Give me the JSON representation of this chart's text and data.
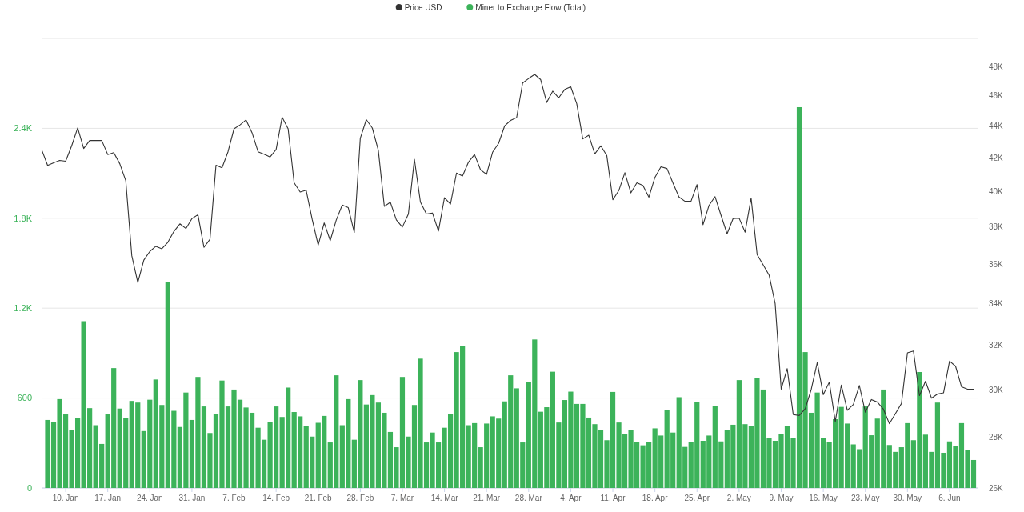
{
  "chart_data": {
    "type": "bar",
    "x": [
      "--01-06",
      "--01-07",
      "--01-08",
      "--01-09",
      "--01-10",
      "--01-11",
      "--01-12",
      "--01-13",
      "--01-14",
      "--01-15",
      "--01-16",
      "--01-17",
      "--01-18",
      "--01-19",
      "--01-20",
      "--01-21",
      "--01-22",
      "--01-23",
      "--01-24",
      "--01-25",
      "--01-26",
      "--01-27",
      "--01-28",
      "--01-29",
      "--01-30",
      "--01-31",
      "--02-01",
      "--02-02",
      "--02-03",
      "--02-04",
      "--02-05",
      "--02-06",
      "--02-07",
      "--02-08",
      "--02-09",
      "--02-10",
      "--02-11",
      "--02-12",
      "--02-13",
      "--02-14",
      "--02-15",
      "--02-16",
      "--02-17",
      "--02-18",
      "--02-19",
      "--02-20",
      "--02-21",
      "--02-22",
      "--02-23",
      "--02-24",
      "--02-25",
      "--02-26",
      "--02-27",
      "--02-28",
      "--03-01",
      "--03-02",
      "--03-03",
      "--03-04",
      "--03-05",
      "--03-06",
      "--03-07",
      "--03-08",
      "--03-09",
      "--03-10",
      "--03-11",
      "--03-12",
      "--03-13",
      "--03-14",
      "--03-15",
      "--03-16",
      "--03-17",
      "--03-18",
      "--03-19",
      "--03-20",
      "--03-21",
      "--03-22",
      "--03-23",
      "--03-24",
      "--03-25",
      "--03-26",
      "--03-27",
      "--03-28",
      "--03-29",
      "--03-30",
      "--03-31",
      "--04-01",
      "--04-02",
      "--04-03",
      "--04-04",
      "--04-05",
      "--04-06",
      "--04-07",
      "--04-08",
      "--04-09",
      "--04-10",
      "--04-11",
      "--04-12",
      "--04-13",
      "--04-14",
      "--04-15",
      "--04-16",
      "--04-17",
      "--04-18",
      "--04-19",
      "--04-20",
      "--04-21",
      "--04-22",
      "--04-23",
      "--04-24",
      "--04-25",
      "--04-26",
      "--04-27",
      "--04-28",
      "--04-29",
      "--04-30",
      "--05-01",
      "--05-02",
      "--05-03",
      "--05-04",
      "--05-05",
      "--05-06",
      "--05-07",
      "--05-08",
      "--05-09",
      "--05-10",
      "--05-11",
      "--05-12",
      "--05-13",
      "--05-14",
      "--05-15",
      "--05-16",
      "--05-17",
      "--05-18",
      "--05-19",
      "--05-20",
      "--05-21",
      "--05-22",
      "--05-23",
      "--05-24",
      "--05-25",
      "--05-26",
      "--05-27",
      "--05-28",
      "--05-29",
      "--05-30",
      "--05-31",
      "--06-01",
      "--06-02",
      "--06-03",
      "--06-04",
      "--06-05",
      "--06-06",
      "--06-07",
      "--06-08",
      "--06-09",
      "--06-10"
    ],
    "series": [
      {
        "name": "Price USD",
        "type": "line",
        "axis": "y2",
        "color": "#333333",
        "values": [
          42540,
          41570,
          41720,
          41870,
          41820,
          42770,
          43900,
          42600,
          43100,
          43100,
          43100,
          42230,
          42350,
          41670,
          40650,
          36450,
          35060,
          36220,
          36680,
          36950,
          36820,
          37170,
          37760,
          38180,
          37920,
          38470,
          38690,
          36900,
          37330,
          41580,
          41420,
          42400,
          43840,
          44090,
          44410,
          43590,
          42400,
          42250,
          42080,
          42540,
          44580,
          43840,
          40530,
          39990,
          40090,
          38430,
          37020,
          38230,
          37260,
          38390,
          39240,
          39090,
          37700,
          43240,
          44430,
          43890,
          42490,
          39160,
          39400,
          38400,
          38000,
          38730,
          41940,
          39410,
          38730,
          38790,
          37780,
          39660,
          39290,
          41110,
          40930,
          41770,
          42230,
          41300,
          41030,
          42370,
          42920,
          44020,
          44380,
          44560,
          46860,
          47170,
          47450,
          47090,
          45550,
          46310,
          45860,
          46420,
          46600,
          45470,
          43200,
          43430,
          42270,
          42770,
          42160,
          39540,
          40080,
          41130,
          39940,
          40530,
          40370,
          39690,
          40850,
          41480,
          41380,
          40520,
          39700,
          39450,
          39450,
          40420,
          38130,
          39220,
          39720,
          38650,
          37630,
          38470,
          38500,
          37720,
          39640,
          36510,
          35970,
          35430,
          33990,
          30020,
          30930,
          28930,
          28890,
          29180,
          30010,
          31210,
          29780,
          30330,
          28640,
          30200,
          29110,
          29360,
          30180,
          29030,
          29570,
          29460,
          29160,
          28550,
          28970,
          29400,
          31650,
          31730,
          29740,
          30370,
          29630,
          29810,
          29860,
          31270,
          31040,
          30120,
          30020,
          30020
        ]
      },
      {
        "name": "Miner to Exchange Flow (Total)",
        "color": "#3cb35a",
        "values": [
          null,
          454,
          441,
          593,
          491,
          385,
          465,
          1113,
          533,
          419,
          294,
          491,
          800,
          530,
          467,
          581,
          570,
          380,
          589,
          724,
          554,
          1372,
          515,
          407,
          637,
          454,
          741,
          544,
          367,
          493,
          717,
          544,
          657,
          589,
          537,
          502,
          402,
          322,
          439,
          544,
          474,
          670,
          507,
          478,
          415,
          343,
          435,
          481,
          304,
          752,
          419,
          593,
          322,
          720,
          557,
          620,
          570,
          502,
          374,
          272,
          741,
          343,
          554,
          863,
          304,
          370,
          304,
          402,
          496,
          907,
          946,
          419,
          433,
          272,
          430,
          478,
          463,
          578,
          752,
          665,
          304,
          707,
          991,
          509,
          539,
          776,
          437,
          587,
          643,
          561,
          561,
          470,
          426,
          389,
          319,
          641,
          437,
          359,
          385,
          307,
          285,
          307,
          398,
          350,
          520,
          370,
          606,
          274,
          307,
          572,
          315,
          350,
          548,
          311,
          385,
          422,
          720,
          426,
          411,
          735,
          657,
          335,
          315,
          359,
          415,
          335,
          2541,
          907,
          502,
          637,
          335,
          307,
          459,
          541,
          430,
          291,
          259,
          544,
          352,
          463,
          657,
          287,
          241,
          272,
          433,
          319,
          774,
          356,
          241,
          570,
          235,
          311,
          280,
          433,
          256,
          187
        ]
      }
    ],
    "xlim": [
      "--01-06",
      "--06-10"
    ],
    "xticks": [
      {
        "value": "--01-10",
        "label": "10. Jan"
      },
      {
        "value": "--01-17",
        "label": "17. Jan"
      },
      {
        "value": "--01-24",
        "label": "24. Jan"
      },
      {
        "value": "--01-31",
        "label": "31. Jan"
      },
      {
        "value": "--02-07",
        "label": "7. Feb"
      },
      {
        "value": "--02-14",
        "label": "14. Feb"
      },
      {
        "value": "--02-21",
        "label": "21. Feb"
      },
      {
        "value": "--02-28",
        "label": "28. Feb"
      },
      {
        "value": "--03-07",
        "label": "7. Mar"
      },
      {
        "value": "--03-14",
        "label": "14. Mar"
      },
      {
        "value": "--03-21",
        "label": "21. Mar"
      },
      {
        "value": "--03-28",
        "label": "28. Mar"
      },
      {
        "value": "--04-04",
        "label": "4. Apr"
      },
      {
        "value": "--04-11",
        "label": "11. Apr"
      },
      {
        "value": "--04-18",
        "label": "18. Apr"
      },
      {
        "value": "--04-25",
        "label": "25. Apr"
      },
      {
        "value": "--05-02",
        "label": "2. May"
      },
      {
        "value": "--05-09",
        "label": "9. May"
      },
      {
        "value": "--05-16",
        "label": "16. May"
      },
      {
        "value": "--05-23",
        "label": "23. May"
      },
      {
        "value": "--05-30",
        "label": "30. May"
      },
      {
        "value": "--06-06",
        "label": "6. Jun"
      }
    ],
    "ylim": [
      0,
      3000
    ],
    "yticks": [
      0,
      600,
      {
        "value": 1200,
        "label": "1.2K"
      },
      {
        "value": 1800,
        "label": "1.8K"
      },
      {
        "value": 2400,
        "label": "2.4K"
      },
      {
        "value": 3000,
        "label": null
      }
    ],
    "y2lim": [
      26000,
      50000
    ],
    "y2ticks": [
      {
        "value": 26000,
        "label": "26K"
      },
      {
        "value": 28000,
        "label": "28K"
      },
      {
        "value": 30000,
        "label": "30K"
      },
      {
        "value": 32000,
        "label": "32K"
      },
      {
        "value": 34000,
        "label": "34K"
      },
      {
        "value": 36000,
        "label": "36K"
      },
      {
        "value": 38000,
        "label": "38K"
      },
      {
        "value": 40000,
        "label": "40K"
      },
      {
        "value": 42000,
        "label": "42K"
      },
      {
        "value": 44000,
        "label": "44K"
      },
      {
        "value": 46000,
        "label": "46K"
      },
      {
        "value": 48000,
        "label": "48K"
      }
    ],
    "log": "y2",
    "grid": "y",
    "legend": "top",
    "line_style": "solid"
  }
}
